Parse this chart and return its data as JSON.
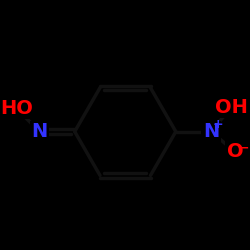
{
  "background_color": "#000000",
  "bond_color": "#111111",
  "bond_width": 2.5,
  "atom_colors": {
    "O": "#ff0000",
    "N": "#3333ff",
    "C": "#111111"
  },
  "font_size_atoms": 14,
  "font_size_charges": 9
}
